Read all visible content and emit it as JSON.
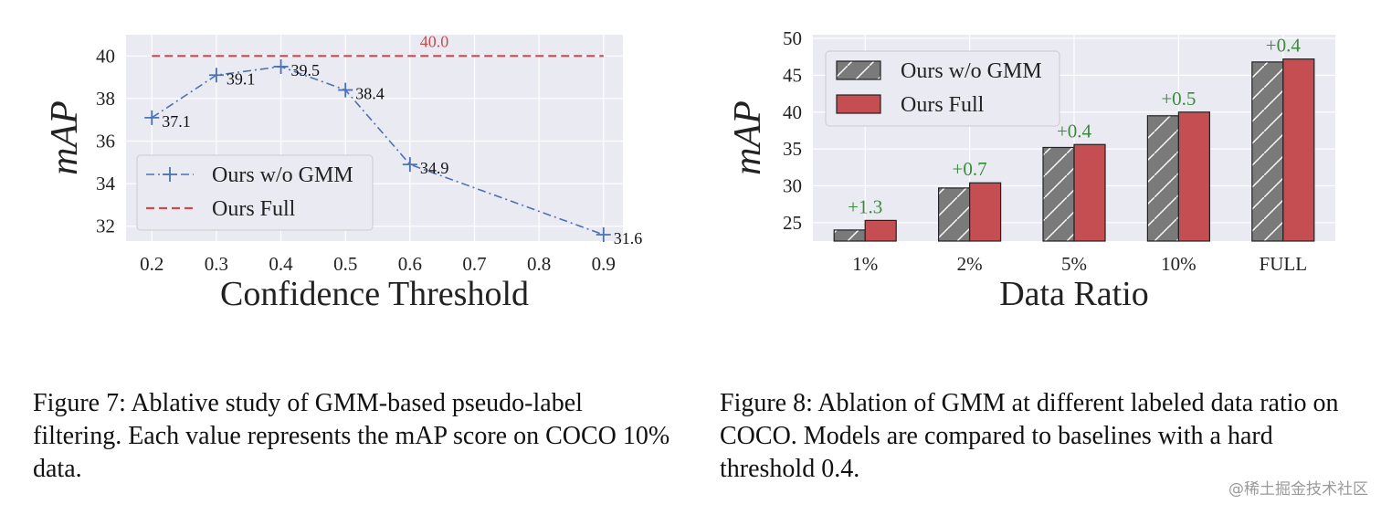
{
  "figure7": {
    "chart_data": {
      "type": "line",
      "title": "",
      "xlabel": "Confidence Threshold",
      "ylabel": "mAP",
      "x_ticks": [
        "0.2",
        "0.3",
        "0.4",
        "0.5",
        "0.6",
        "0.7",
        "0.8",
        "0.9"
      ],
      "y_ticks": [
        "32",
        "34",
        "36",
        "38",
        "40"
      ],
      "xlim": [
        0.16,
        0.93
      ],
      "ylim": [
        31.3,
        41.0
      ],
      "grid": true,
      "legend_position": "center-left",
      "series": [
        {
          "name": "Ours w/o GMM",
          "color": "#4c72b0",
          "style": "dash-dot",
          "marker": "+",
          "x": [
            0.2,
            0.3,
            0.4,
            0.5,
            0.6,
            0.9
          ],
          "y": [
            37.1,
            39.1,
            39.5,
            38.4,
            34.9,
            31.6
          ],
          "labels": [
            "37.1",
            "39.1",
            "39.5",
            "38.4",
            "34.9",
            "31.6"
          ]
        },
        {
          "name": "Ours Full",
          "color": "#c44e52",
          "style": "dashed",
          "x": [
            0.2,
            0.9
          ],
          "y": [
            40.0,
            40.0
          ],
          "labels": [
            "40.0"
          ]
        }
      ]
    },
    "caption": "Figure 7:  Ablative study of GMM-based pseudo-label filtering. Each value represents the mAP score on COCO 10% data."
  },
  "figure8": {
    "chart_data": {
      "type": "bar",
      "title": "",
      "xlabel": "Data Ratio",
      "ylabel": "mAP",
      "categories": [
        "1%",
        "2%",
        "5%",
        "10%",
        "FULL"
      ],
      "y_ticks": [
        "25",
        "30",
        "35",
        "40",
        "45",
        "50"
      ],
      "ylim": [
        22.5,
        50.5
      ],
      "grid": true,
      "legend_position": "top-left",
      "series": [
        {
          "name": "Ours w/o GMM",
          "color": "#7a7a7a",
          "hatch": "/",
          "values": [
            24.0,
            29.7,
            35.2,
            39.5,
            46.8
          ]
        },
        {
          "name": "Ours Full",
          "color": "#c44e52",
          "values": [
            25.3,
            30.4,
            35.6,
            40.0,
            47.2
          ]
        }
      ],
      "gain_labels": [
        "+1.3",
        "+0.7",
        "+0.4",
        "+0.5",
        "+0.4"
      ],
      "gain_color": "#3a8a3a"
    },
    "caption": "Figure 8:  Ablation of GMM at different labeled data ratio on COCO. Models are compared to baselines with a hard threshold 0.4."
  },
  "watermark": "@稀土掘金技术社区"
}
